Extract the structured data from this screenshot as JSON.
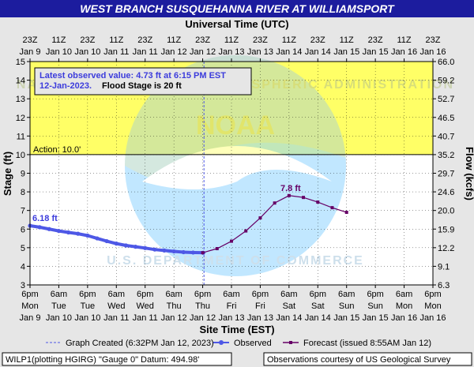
{
  "title": "WEST BRANCH SUSQUEHANNA RIVER AT WILLIAMSPORT",
  "top_axis_title": "Universal Time (UTC)",
  "bottom_axis_title": "Site Time (EST)",
  "left_axis_title": "Stage (ft)",
  "right_axis_title": "Flow (kcfs)",
  "latest_observed_line1": "Latest observed value:  4.73  ft at 6:15 PM EST",
  "latest_observed_date": "12-Jan-2023.",
  "flood_stage_text": "Flood Stage is 20 ft",
  "action_label": "Action: 10.0'",
  "peak_obs_label": "6.18 ft",
  "peak_fcst_label": "7.8 ft",
  "legend": {
    "created": "Graph Created (6:32PM Jan 12, 2023)",
    "observed": "Observed",
    "forecast": "Forecast (issued 8:55AM Jan 12)"
  },
  "footer_left": "WILP1(plotting HGIRG) \"Gauge 0\" Datum: 494.98'",
  "footer_right": "Observations courtesy of US Geological Survey",
  "colors": {
    "background": "#e6e6e6",
    "title_bar": "#1c1c9e",
    "action_band": "#ffff66",
    "plot_bg": "#ffffff",
    "observed": "#4e58e6",
    "forecast": "#660066",
    "created_line": "#4e58e6"
  },
  "chart_data": {
    "type": "line",
    "y_left_label": "Stage (ft)",
    "y_right_label": "Flow (kcfs)",
    "ylim": [
      3,
      15
    ],
    "y_ticks": [
      3,
      4,
      5,
      6,
      7,
      8,
      9,
      10,
      11,
      12,
      13,
      14,
      15
    ],
    "y_right_ticks": [
      {
        "stage": 3,
        "label": "6.3"
      },
      {
        "stage": 4,
        "label": "9.1"
      },
      {
        "stage": 5,
        "label": "12.2"
      },
      {
        "stage": 6,
        "label": "15.9"
      },
      {
        "stage": 7,
        "label": "20.0"
      },
      {
        "stage": 8,
        "label": "24.6"
      },
      {
        "stage": 9,
        "label": "29.7"
      },
      {
        "stage": 10,
        "label": "35.2"
      },
      {
        "stage": 11,
        "label": "40.7"
      },
      {
        "stage": 12,
        "label": "46.5"
      },
      {
        "stage": 13,
        "label": "52.7"
      },
      {
        "stage": 14,
        "label": "59.2"
      },
      {
        "stage": 15,
        "label": "66.0"
      }
    ],
    "x_range_hours_est": [
      "Jan 9 18:00",
      "Jan 16 18:00"
    ],
    "x_bottom_ticks": [
      [
        "6pm",
        "Mon",
        "Jan 9"
      ],
      [
        "6am",
        "Tue",
        "Jan 10"
      ],
      [
        "6pm",
        "Tue",
        "Jan 10"
      ],
      [
        "6am",
        "Wed",
        "Jan 11"
      ],
      [
        "6pm",
        "Wed",
        "Jan 11"
      ],
      [
        "6am",
        "Thu",
        "Jan 12"
      ],
      [
        "6pm",
        "Thu",
        "Jan 12"
      ],
      [
        "6am",
        "Fri",
        "Jan 13"
      ],
      [
        "6pm",
        "Fri",
        "Jan 13"
      ],
      [
        "6am",
        "Sat",
        "Jan 14"
      ],
      [
        "6pm",
        "Sat",
        "Jan 14"
      ],
      [
        "6am",
        "Sun",
        "Jan 15"
      ],
      [
        "6pm",
        "Sun",
        "Jan 15"
      ],
      [
        "6am",
        "Mon",
        "Jan 16"
      ],
      [
        "6pm",
        "Mon",
        "Jan 16"
      ]
    ],
    "x_top_ticks": [
      [
        "23Z",
        "Jan  9"
      ],
      [
        "11Z",
        "Jan 10"
      ],
      [
        "23Z",
        "Jan 10"
      ],
      [
        "11Z",
        "Jan 11"
      ],
      [
        "23Z",
        "Jan 11"
      ],
      [
        "11Z",
        "Jan 12"
      ],
      [
        "23Z",
        "Jan 12"
      ],
      [
        "11Z",
        "Jan 13"
      ],
      [
        "23Z",
        "Jan 13"
      ],
      [
        "11Z",
        "Jan 14"
      ],
      [
        "23Z",
        "Jan 14"
      ],
      [
        "11Z",
        "Jan 15"
      ],
      [
        "23Z",
        "Jan 15"
      ],
      [
        "11Z",
        "Jan 16"
      ],
      [
        "23Z",
        "Jan 16"
      ]
    ],
    "action_stage": 10.0,
    "graph_created_x": "Jan 12 18:32",
    "series": [
      {
        "name": "Observed",
        "x": [
          "Jan 9 18:00",
          "Jan 9 22:00",
          "Jan 10 02:00",
          "Jan 10 06:00",
          "Jan 10 10:00",
          "Jan 10 14:00",
          "Jan 10 18:00",
          "Jan 10 22:00",
          "Jan 11 02:00",
          "Jan 11 06:00",
          "Jan 11 10:00",
          "Jan 11 14:00",
          "Jan 11 18:00",
          "Jan 11 22:00",
          "Jan 12 02:00",
          "Jan 12 06:00",
          "Jan 12 10:00",
          "Jan 12 14:00",
          "Jan 12 18:15"
        ],
        "values": [
          6.18,
          6.1,
          6.0,
          5.9,
          5.82,
          5.75,
          5.65,
          5.5,
          5.35,
          5.22,
          5.12,
          5.05,
          4.98,
          4.9,
          4.85,
          4.8,
          4.76,
          4.74,
          4.73
        ]
      },
      {
        "name": "Forecast (issued 8:55AM Jan 12)",
        "x": [
          "Jan 12 18:00",
          "Jan 13 00:00",
          "Jan 13 06:00",
          "Jan 13 12:00",
          "Jan 13 18:00",
          "Jan 14 00:00",
          "Jan 14 06:00",
          "Jan 14 12:00",
          "Jan 14 18:00",
          "Jan 15 00:00",
          "Jan 15 06:00"
        ],
        "values": [
          4.73,
          4.95,
          5.35,
          5.9,
          6.6,
          7.4,
          7.8,
          7.7,
          7.45,
          7.15,
          6.9
        ]
      }
    ]
  }
}
